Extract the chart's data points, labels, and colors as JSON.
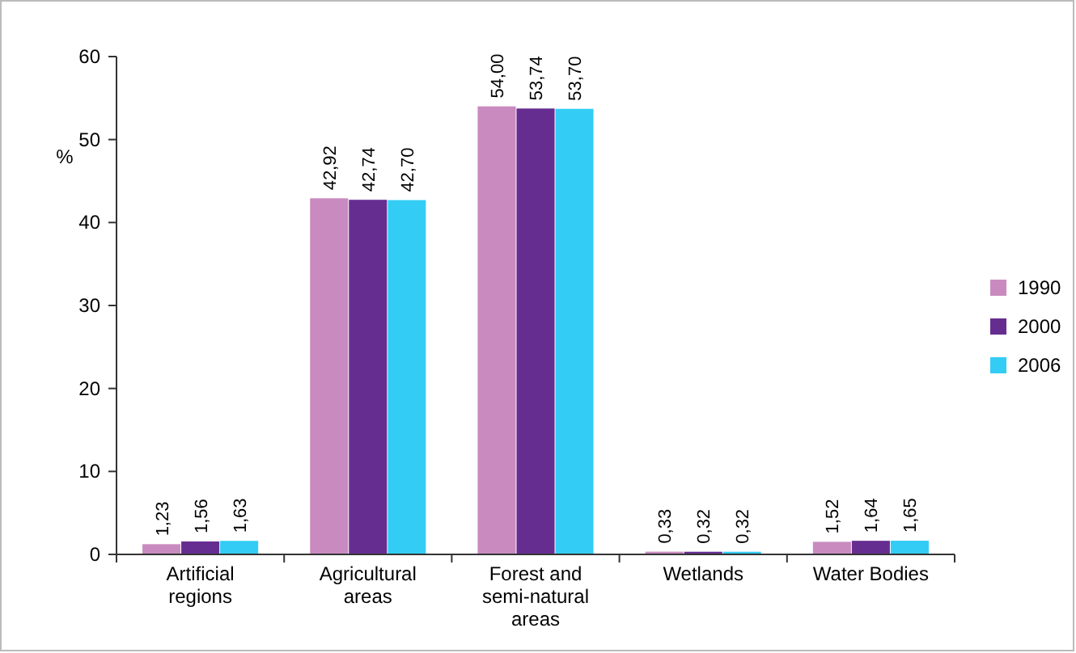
{
  "chart_data": {
    "type": "bar",
    "ylabel": "%",
    "categories": [
      "Artificial regions",
      "Agricultural areas",
      "Forest and semi-natural areas",
      "Wetlands",
      "Water Bodies"
    ],
    "series": [
      {
        "name": "1990",
        "color": "#c98bbf",
        "values": [
          1.23,
          42.92,
          54.0,
          0.33,
          1.52
        ],
        "value_labels": [
          "1,23",
          "42,92",
          "54,00",
          "0,33",
          "1,52"
        ]
      },
      {
        "name": "2000",
        "color": "#662d91",
        "values": [
          1.56,
          42.74,
          53.74,
          0.32,
          1.64
        ],
        "value_labels": [
          "1,56",
          "42,74",
          "53,74",
          "0,32",
          "1,64"
        ]
      },
      {
        "name": "2006",
        "color": "#33ccf5",
        "values": [
          1.63,
          42.7,
          53.7,
          0.32,
          1.65
        ],
        "value_labels": [
          "1,63",
          "42,70",
          "53,70",
          "0,32",
          "1,65"
        ]
      }
    ],
    "ylim": [
      0,
      60
    ],
    "yticks": [
      0,
      10,
      20,
      30,
      40,
      50,
      60
    ],
    "grid": false,
    "legend": "right"
  }
}
